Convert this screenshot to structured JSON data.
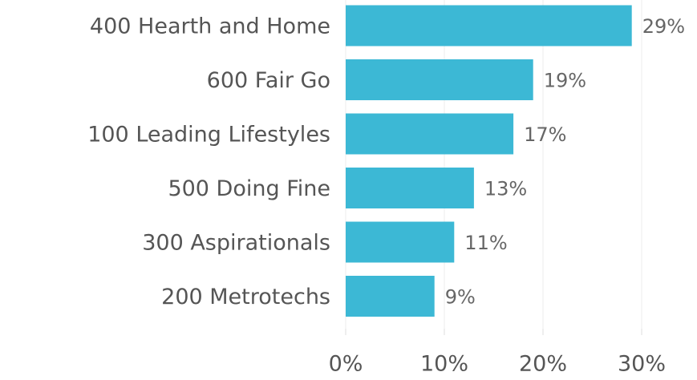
{
  "chart_data": {
    "type": "hbar",
    "categories": [
      "400 Hearth and Home",
      "600 Fair Go",
      "100 Leading Lifestyles",
      "500 Doing Fine",
      "300 Aspirationals",
      "200 Metrotechs"
    ],
    "values": [
      29,
      19,
      17,
      13,
      11,
      9
    ],
    "value_labels": [
      "29%",
      "19%",
      "17%",
      "13%",
      "11%",
      "9%"
    ],
    "color": "#3cb8d5",
    "xlim": [
      0,
      35
    ],
    "xticks": [
      {
        "value": 0,
        "label": "0%"
      },
      {
        "value": 10,
        "label": "10%"
      },
      {
        "value": 20,
        "label": "20%"
      },
      {
        "value": 30,
        "label": "30%"
      }
    ],
    "grid": true
  }
}
